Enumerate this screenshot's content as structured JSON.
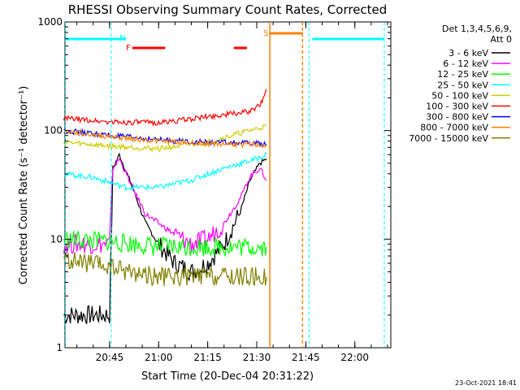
{
  "chart_data": {
    "type": "line",
    "title": "RHESSI Observing Summary Count Rates, Corrected",
    "xlabel": "Start Time (20-Dec-04 20:31:22)",
    "ylabel": "Corrected Count Rate (s⁻¹ detector⁻¹)",
    "yscale": "log",
    "ylim": [
      1,
      1000
    ],
    "xlim": [
      "20:31:22",
      "22:11:00"
    ],
    "x_ticks": [
      "20:45",
      "21:00",
      "21:15",
      "21:30",
      "21:45",
      "22:00"
    ],
    "y_ticks": [
      "1",
      "10",
      "100",
      "1000"
    ],
    "grid": false,
    "legend_header": [
      "Det 1,3,4,5,6,9,",
      "Att 0"
    ],
    "legend_position": "right",
    "series": [
      {
        "name": "3 - 6 keV",
        "color": "#000000",
        "x": [
          "20:31",
          "20:45",
          "20:46",
          "20:48",
          "20:52",
          "20:56",
          "21:00",
          "21:05",
          "21:10",
          "21:15",
          "21:20",
          "21:25",
          "21:28",
          "21:31",
          "21:33"
        ],
        "y": [
          2.0,
          2.0,
          45,
          60,
          30,
          14,
          9,
          6,
          5,
          6,
          9,
          18,
          35,
          50,
          55
        ]
      },
      {
        "name": "6 - 12 keV",
        "color": "#ff00ff",
        "x": [
          "20:31",
          "20:45",
          "20:46",
          "20:48",
          "20:52",
          "20:56",
          "21:00",
          "21:05",
          "21:10",
          "21:15",
          "21:20",
          "21:25",
          "21:28",
          "21:31",
          "21:33"
        ],
        "y": [
          9,
          9,
          45,
          55,
          30,
          17,
          14,
          11,
          9,
          10,
          14,
          24,
          38,
          45,
          35
        ]
      },
      {
        "name": "12 - 25 keV",
        "color": "#00ff00",
        "x": [
          "20:31",
          "20:45",
          "21:00",
          "21:15",
          "21:30",
          "21:33"
        ],
        "y": [
          10,
          9.5,
          8.5,
          8.5,
          8.5,
          8.5
        ]
      },
      {
        "name": "25 - 50 keV",
        "color": "#00ffff",
        "x": [
          "20:31",
          "20:40",
          "20:50",
          "21:00",
          "21:10",
          "21:20",
          "21:30",
          "21:33"
        ],
        "y": [
          40,
          37,
          30,
          30,
          35,
          45,
          55,
          60
        ]
      },
      {
        "name": "50 - 100 keV",
        "color": "#cccc00",
        "x": [
          "20:31",
          "20:45",
          "21:00",
          "21:15",
          "21:25",
          "21:33"
        ],
        "y": [
          78,
          72,
          68,
          78,
          95,
          110
        ]
      },
      {
        "name": "100 - 300 keV",
        "color": "#ff0000",
        "x": [
          "20:31",
          "20:45",
          "21:00",
          "21:10",
          "21:20",
          "21:28",
          "21:31",
          "21:33"
        ],
        "y": [
          130,
          120,
          118,
          128,
          140,
          150,
          170,
          240
        ]
      },
      {
        "name": "300 - 800 keV",
        "color": "#0000ff",
        "x": [
          "20:31",
          "20:45",
          "21:00",
          "21:15",
          "21:30",
          "21:33"
        ],
        "y": [
          100,
          90,
          82,
          78,
          76,
          75
        ]
      },
      {
        "name": "800 - 7000 keV",
        "color": "#ff8000",
        "x": [
          "20:31",
          "20:45",
          "21:00",
          "21:15",
          "21:30",
          "21:33"
        ],
        "y": [
          98,
          88,
          80,
          76,
          74,
          73
        ]
      },
      {
        "name": "7000 - 15000 keV",
        "color": "#808000",
        "x": [
          "20:31",
          "20:45",
          "21:00",
          "21:15",
          "21:30",
          "21:33"
        ],
        "y": [
          6.5,
          5.5,
          4.5,
          4.5,
          4.5,
          4.5
        ]
      }
    ],
    "annotations": [
      {
        "label": "N",
        "color": "#00ffff"
      },
      {
        "label": "F",
        "color": "#ff0000"
      },
      {
        "label": "S",
        "color": "#ff8000"
      }
    ]
  },
  "footer_timestamp": "23-Oct-2021 18:41"
}
